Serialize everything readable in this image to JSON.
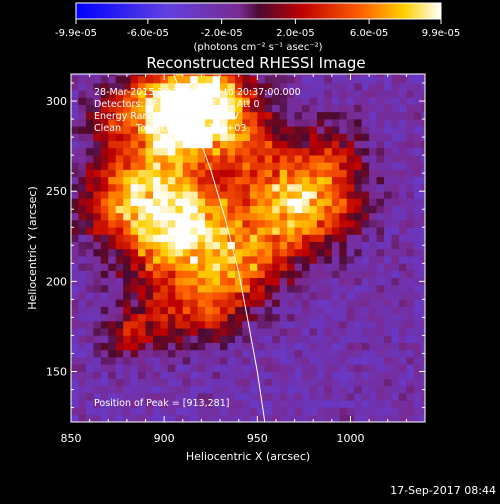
{
  "chart_data": {
    "type": "heatmap",
    "title": "Reconstructed RHESSI Image",
    "xlabel": "Heliocentric X (arcsec)",
    "ylabel": "Heliocentric Y (arcsec)",
    "xlim": [
      850,
      1040
    ],
    "ylim": [
      122,
      315
    ],
    "xticks": [
      850,
      900,
      950,
      1000
    ],
    "yticks": [
      150,
      200,
      250,
      300
    ],
    "colorbar": {
      "range": [
        -9.9e-05,
        9.9e-05
      ],
      "ticks": [
        -9.9e-05,
        -6e-05,
        -2e-05,
        2e-05,
        6e-05,
        9.9e-05
      ],
      "tick_labels": [
        "-9.9e-05",
        "-6.0e-05",
        "-2.0e-05",
        "2.0e-05",
        "6.0e-05",
        "9.9e-05"
      ],
      "units": "(photons cm⁻² s⁻¹ asec⁻²)"
    },
    "annotations": [
      "28-Mar-2015 20:27:00.000 to 20:37:00.000",
      "Detectors: 3F 5F 6F 7F 8F 9F, Att 0",
      "Energy Range: 25.0 - 50.0 keV",
      "Clean     Total counts: 5.74E+03"
    ],
    "peak_label": "Position of Peak = [913,281]",
    "peak": [
      913,
      281
    ],
    "limb_curve": [
      [
        905,
        315
      ],
      [
        915,
        290
      ],
      [
        925,
        262
      ],
      [
        933,
        234
      ],
      [
        940,
        205
      ],
      [
        945,
        178
      ],
      [
        950,
        150
      ],
      [
        954,
        122
      ]
    ],
    "emission_blobs": [
      {
        "x": 915,
        "y": 288,
        "v": 9.9e-05,
        "r": 16
      },
      {
        "x": 905,
        "y": 300,
        "v": 8.5e-05,
        "r": 14
      },
      {
        "x": 930,
        "y": 305,
        "v": 7e-05,
        "r": 12
      },
      {
        "x": 890,
        "y": 262,
        "v": 6.5e-05,
        "r": 18
      },
      {
        "x": 875,
        "y": 240,
        "v": 5.5e-05,
        "r": 14
      },
      {
        "x": 905,
        "y": 240,
        "v": 6e-05,
        "r": 16
      },
      {
        "x": 900,
        "y": 215,
        "v": 6e-05,
        "r": 15
      },
      {
        "x": 925,
        "y": 228,
        "v": 6.5e-05,
        "r": 16
      },
      {
        "x": 935,
        "y": 200,
        "v": 5.5e-05,
        "r": 14
      },
      {
        "x": 920,
        "y": 185,
        "v": 4.5e-05,
        "r": 13
      },
      {
        "x": 960,
        "y": 250,
        "v": 6.5e-05,
        "r": 17
      },
      {
        "x": 975,
        "y": 235,
        "v": 5e-05,
        "r": 15
      },
      {
        "x": 990,
        "y": 248,
        "v": 4.5e-05,
        "r": 14
      },
      {
        "x": 990,
        "y": 272,
        "v": 3.5e-05,
        "r": 12
      },
      {
        "x": 945,
        "y": 280,
        "v": 4.5e-05,
        "r": 14
      },
      {
        "x": 955,
        "y": 215,
        "v": 4e-05,
        "r": 13
      },
      {
        "x": 895,
        "y": 180,
        "v": 3.5e-05,
        "r": 11
      },
      {
        "x": 880,
        "y": 170,
        "v": 4e-05,
        "r": 8
      },
      {
        "x": 870,
        "y": 290,
        "v": 3e-05,
        "r": 10
      },
      {
        "x": 885,
        "y": 300,
        "v": 2.5e-05,
        "r": 10
      }
    ]
  },
  "footer": {
    "timestamp": "17-Sep-2017 08:44"
  }
}
